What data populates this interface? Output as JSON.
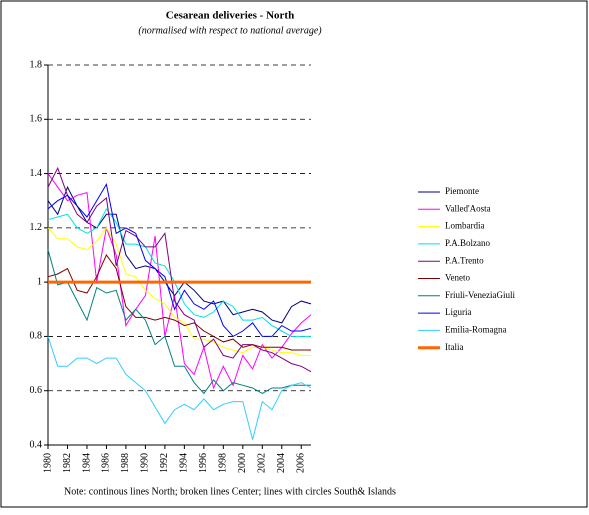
{
  "chart_data": {
    "type": "line",
    "title": "Cesarean deliveries - North",
    "subtitle": "(normalised with respect to national average)",
    "note": "Note: continous lines North; broken lines Center; lines with circles South& Islands",
    "x": [
      1980,
      1981,
      1982,
      1983,
      1984,
      1985,
      1986,
      1987,
      1988,
      1989,
      1990,
      1991,
      1992,
      1993,
      1994,
      1995,
      1996,
      1997,
      1998,
      1999,
      2000,
      2001,
      2002,
      2003,
      2004,
      2005,
      2006,
      2007
    ],
    "xlim": [
      1980,
      2007
    ],
    "xticks": [
      1980,
      1982,
      1984,
      1986,
      1988,
      1990,
      1992,
      1994,
      1996,
      1998,
      2000,
      2002,
      2004,
      2006
    ],
    "ylim": [
      0.4,
      1.8
    ],
    "yticks": [
      0.4,
      0.6,
      0.8,
      1,
      1.2,
      1.4,
      1.6,
      1.8
    ],
    "grid": true,
    "legend": "right",
    "series": [
      {
        "name": "Piemonte",
        "color": "#000080",
        "values": [
          1.3,
          1.25,
          1.35,
          1.28,
          1.22,
          1.2,
          1.25,
          1.25,
          1.1,
          1.05,
          1.06,
          1.05,
          1.0,
          0.95,
          1.0,
          0.97,
          0.93,
          0.92,
          0.93,
          0.88,
          0.89,
          0.9,
          0.89,
          0.86,
          0.85,
          0.91,
          0.93,
          0.92
        ]
      },
      {
        "name": "Valled'Aosta",
        "color": "#ff00ff",
        "values": [
          1.4,
          1.35,
          1.3,
          1.32,
          1.33,
          1.0,
          1.2,
          1.1,
          0.84,
          0.9,
          0.95,
          1.17,
          0.8,
          0.95,
          0.7,
          0.66,
          0.76,
          0.61,
          0.69,
          0.62,
          0.73,
          0.68,
          0.77,
          0.72,
          0.76,
          0.81,
          0.85,
          0.88
        ]
      },
      {
        "name": "Lombardia",
        "color": "#ffff00",
        "values": [
          1.2,
          1.16,
          1.16,
          1.13,
          1.12,
          1.15,
          1.2,
          1.14,
          1.03,
          1.02,
          0.97,
          0.94,
          0.92,
          0.87,
          0.85,
          0.79,
          0.79,
          0.78,
          0.76,
          0.75,
          0.74,
          0.76,
          0.76,
          0.75,
          0.74,
          0.74,
          0.73,
          0.73
        ]
      },
      {
        "name": "P.A.Bolzano",
        "color": "#00e0e0",
        "values": [
          1.23,
          1.24,
          1.25,
          1.2,
          1.18,
          1.2,
          1.27,
          1.22,
          1.14,
          1.14,
          1.13,
          1.07,
          1.06,
          1.0,
          0.92,
          0.88,
          0.87,
          0.89,
          0.93,
          0.91,
          0.86,
          0.86,
          0.87,
          0.84,
          0.82,
          0.8,
          0.8,
          0.8
        ]
      },
      {
        "name": "P.A.Trento",
        "color": "#800080",
        "values": [
          1.35,
          1.42,
          1.32,
          1.25,
          1.22,
          1.28,
          1.31,
          1.06,
          1.19,
          1.17,
          1.13,
          1.13,
          1.18,
          0.93,
          0.88,
          0.86,
          0.76,
          0.79,
          0.73,
          0.72,
          0.77,
          0.77,
          0.75,
          0.74,
          0.72,
          0.7,
          0.69,
          0.67
        ]
      },
      {
        "name": "Veneto",
        "color": "#800000",
        "values": [
          1.02,
          1.03,
          1.05,
          0.97,
          0.96,
          1.02,
          1.1,
          1.05,
          0.91,
          0.87,
          0.87,
          0.86,
          0.87,
          0.86,
          0.84,
          0.85,
          0.82,
          0.8,
          0.78,
          0.79,
          0.76,
          0.77,
          0.76,
          0.76,
          0.76,
          0.75,
          0.75,
          0.75
        ]
      },
      {
        "name": "Friuli-VeneziaGiuli",
        "color": "#008080",
        "values": [
          1.12,
          0.99,
          1.0,
          0.93,
          0.86,
          0.98,
          0.96,
          0.97,
          0.86,
          0.9,
          0.86,
          0.77,
          0.8,
          0.69,
          0.69,
          0.63,
          0.59,
          0.64,
          0.6,
          0.63,
          0.62,
          0.61,
          0.59,
          0.61,
          0.61,
          0.62,
          0.62,
          0.62
        ]
      },
      {
        "name": "Liguria",
        "color": "#0000ff",
        "values": [
          1.27,
          1.3,
          1.32,
          1.28,
          1.24,
          1.3,
          1.36,
          1.18,
          1.2,
          1.18,
          1.08,
          1.05,
          1.02,
          0.9,
          0.97,
          0.92,
          0.9,
          0.93,
          0.84,
          0.8,
          0.82,
          0.85,
          0.8,
          0.8,
          0.84,
          0.82,
          0.82,
          0.83
        ]
      },
      {
        "name": "Emilia-Romagna",
        "color": "#33ccff",
        "values": [
          0.8,
          0.69,
          0.69,
          0.72,
          0.72,
          0.7,
          0.72,
          0.72,
          0.66,
          0.63,
          0.6,
          0.54,
          0.48,
          0.53,
          0.55,
          0.53,
          0.57,
          0.53,
          0.55,
          0.56,
          0.56,
          0.42,
          0.56,
          0.53,
          0.6,
          0.62,
          0.63,
          0.61
        ]
      },
      {
        "name": "Italia",
        "color": "#ff6600",
        "width": 3,
        "values": [
          1,
          1,
          1,
          1,
          1,
          1,
          1,
          1,
          1,
          1,
          1,
          1,
          1,
          1,
          1,
          1,
          1,
          1,
          1,
          1,
          1,
          1,
          1,
          1,
          1,
          1,
          1,
          1
        ]
      }
    ]
  }
}
